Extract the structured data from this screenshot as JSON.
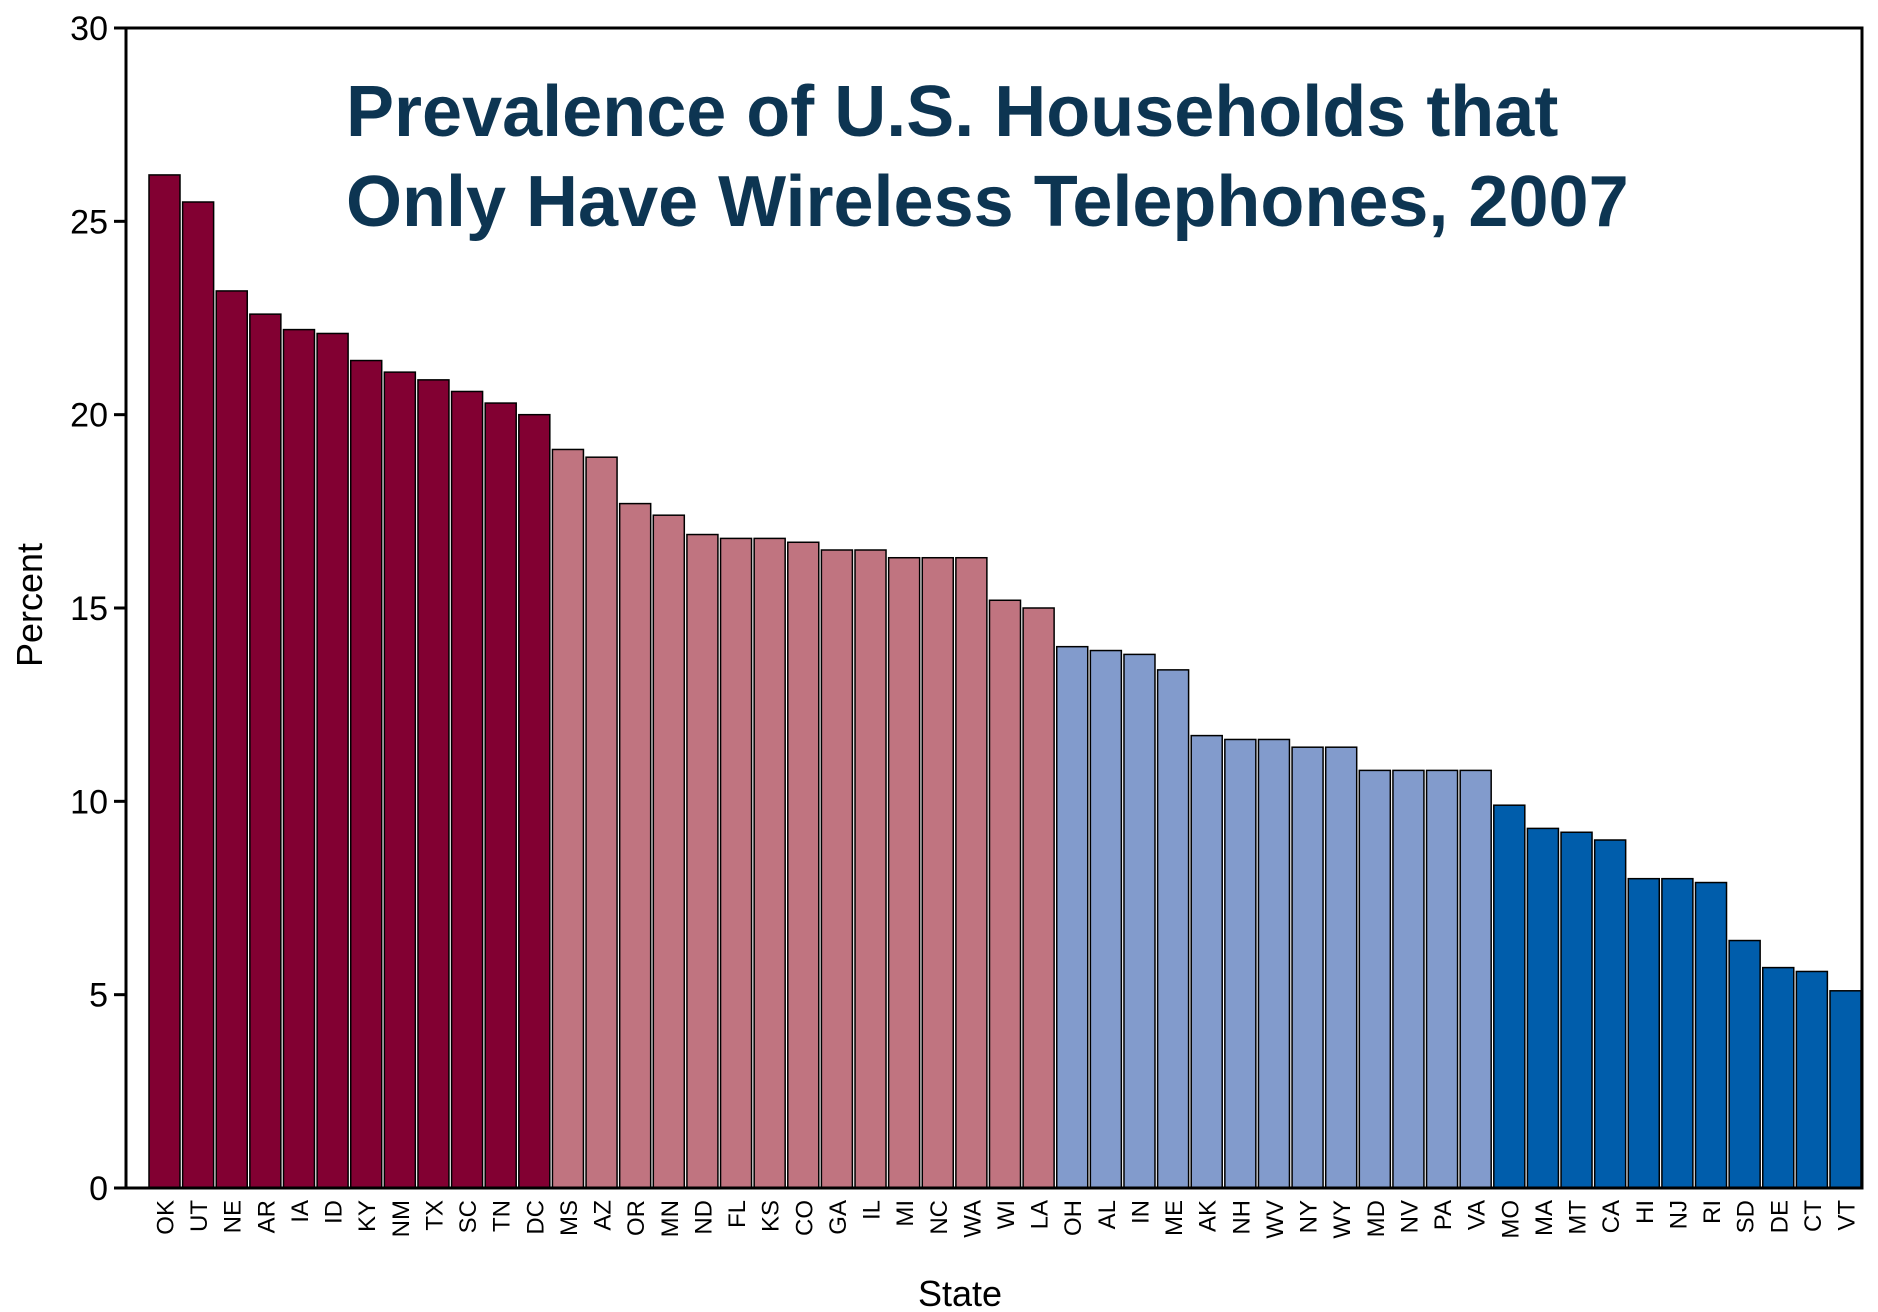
{
  "chart_data": {
    "type": "bar",
    "title_lines": [
      "Prevalence of U.S. Households that",
      "Only Have Wireless Telephones, 2007"
    ],
    "xlabel": "State",
    "ylabel": "Percent",
    "ylim": [
      0,
      30
    ],
    "yticks": [
      0,
      5,
      10,
      15,
      20,
      25,
      30
    ],
    "grid": false,
    "colors": {
      "highest": "#820032",
      "high": "#c07480",
      "low": "#829bcc",
      "lowest": "#005dab",
      "title": "#0d3552"
    },
    "categories": [
      "OK",
      "UT",
      "NE",
      "AR",
      "IA",
      "ID",
      "KY",
      "NM",
      "TX",
      "SC",
      "TN",
      "DC",
      "MS",
      "AZ",
      "OR",
      "MN",
      "ND",
      "FL",
      "KS",
      "CO",
      "GA",
      "IL",
      "MI",
      "NC",
      "WA",
      "WI",
      "LA",
      "OH",
      "AL",
      "IN",
      "ME",
      "AK",
      "NH",
      "WV",
      "NY",
      "WY",
      "MD",
      "NV",
      "PA",
      "VA",
      "MO",
      "MA",
      "MT",
      "CA",
      "HI",
      "NJ",
      "RI",
      "SD",
      "DE",
      "CT",
      "VT"
    ],
    "values": [
      26.2,
      25.5,
      23.2,
      22.6,
      22.2,
      22.1,
      21.4,
      21.1,
      20.9,
      20.6,
      20.3,
      20.0,
      19.1,
      18.9,
      17.7,
      17.4,
      16.9,
      16.8,
      16.8,
      16.7,
      16.5,
      16.5,
      16.3,
      16.3,
      16.3,
      15.2,
      15.0,
      14.0,
      13.9,
      13.8,
      13.4,
      11.7,
      11.6,
      11.6,
      11.4,
      11.4,
      10.8,
      10.8,
      10.8,
      10.8,
      9.9,
      9.3,
      9.2,
      9.0,
      8.0,
      8.0,
      7.9,
      6.4,
      5.7,
      5.6,
      5.1
    ],
    "groups": [
      "highest",
      "highest",
      "highest",
      "highest",
      "highest",
      "highest",
      "highest",
      "highest",
      "highest",
      "highest",
      "highest",
      "highest",
      "high",
      "high",
      "high",
      "high",
      "high",
      "high",
      "high",
      "high",
      "high",
      "high",
      "high",
      "high",
      "high",
      "high",
      "high",
      "low",
      "low",
      "low",
      "low",
      "low",
      "low",
      "low",
      "low",
      "low",
      "low",
      "low",
      "low",
      "low",
      "lowest",
      "lowest",
      "lowest",
      "lowest",
      "lowest",
      "lowest",
      "lowest",
      "lowest",
      "lowest",
      "lowest",
      "lowest"
    ]
  }
}
